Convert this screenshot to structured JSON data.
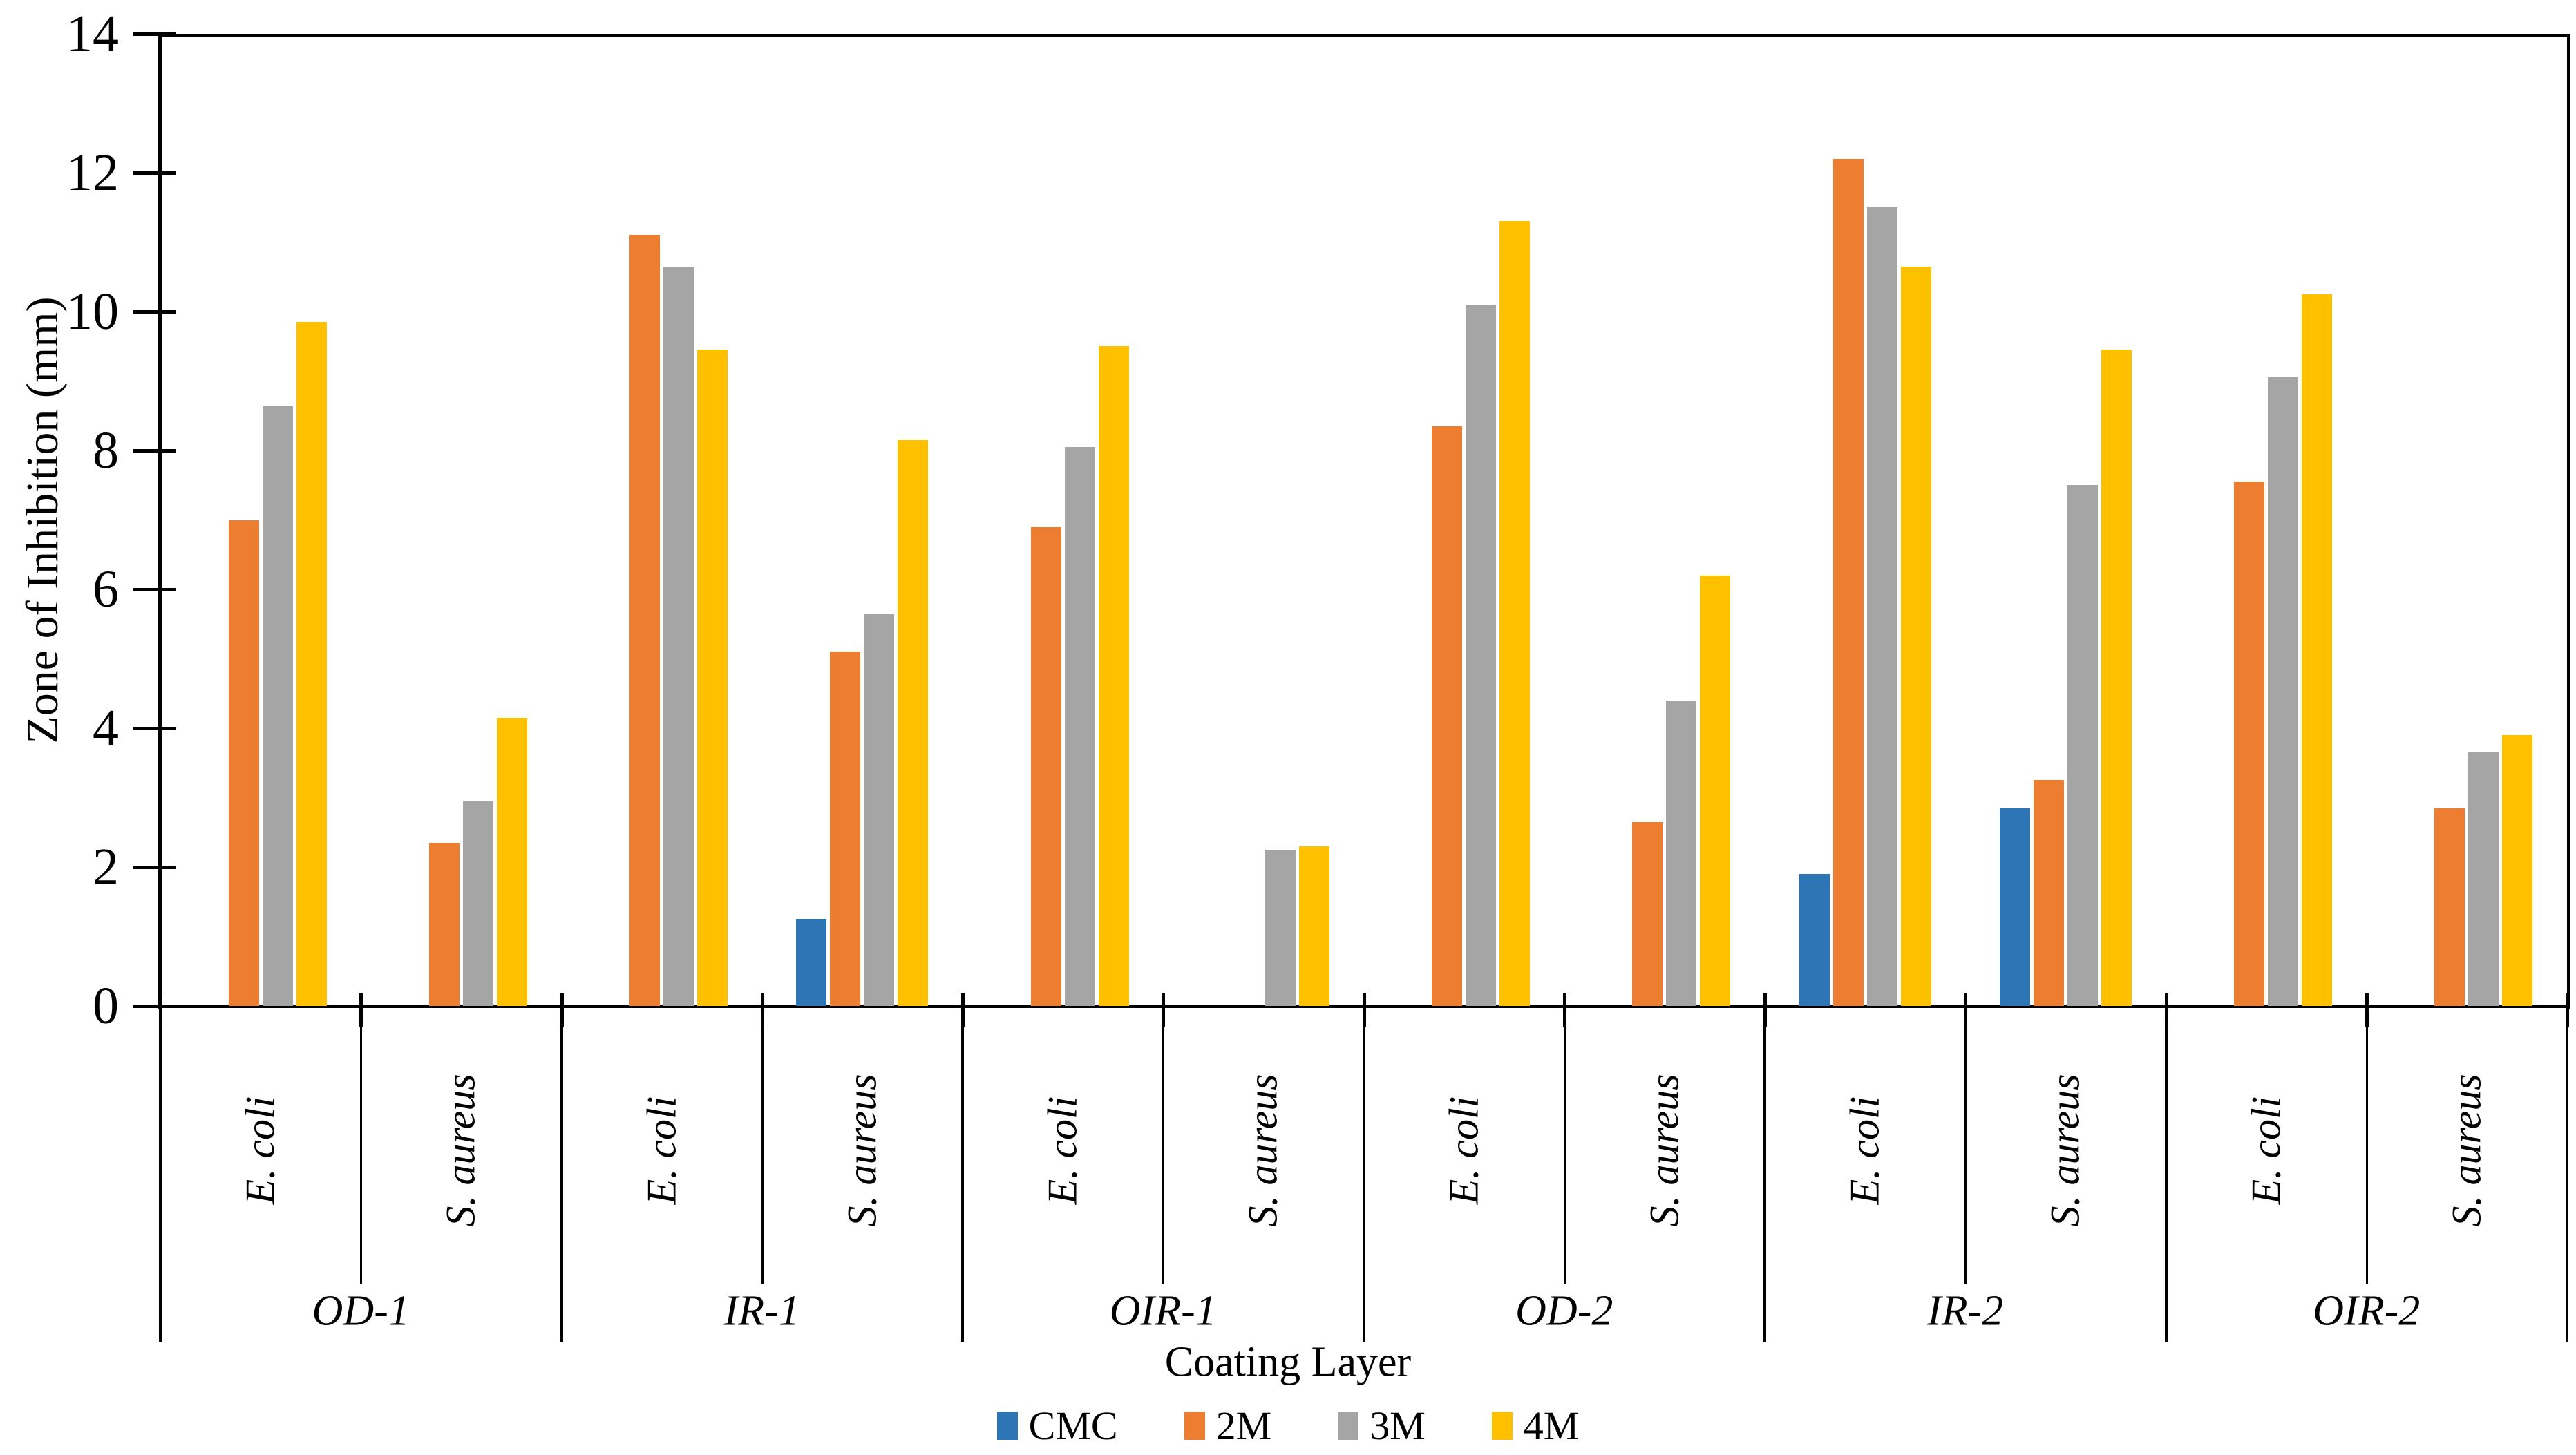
{
  "chart_data": {
    "type": "bar",
    "title": "",
    "xlabel": "Coating Layer",
    "ylabel": "Zone of Inhibition (mm)",
    "ylim": [
      0,
      14
    ],
    "yticks": [
      0,
      2,
      4,
      6,
      8,
      10,
      12,
      14
    ],
    "grid": false,
    "legend_position": "bottom",
    "groups": [
      "OD-1",
      "IR-1",
      "OIR-1",
      "OD-2",
      "IR-2",
      "OIR-2"
    ],
    "subcategories": [
      "E. coli",
      "S. aureus"
    ],
    "series": [
      {
        "name": "CMC",
        "color": "#2E75B6",
        "values": [
          [
            0,
            0
          ],
          [
            0,
            1.25
          ],
          [
            0,
            0
          ],
          [
            0,
            0
          ],
          [
            1.9,
            2.85
          ],
          [
            0,
            0
          ]
        ]
      },
      {
        "name": "2M",
        "color": "#ED7D31",
        "values": [
          [
            7.0,
            2.35
          ],
          [
            11.1,
            5.1
          ],
          [
            6.9,
            0
          ],
          [
            8.35,
            2.65
          ],
          [
            12.2,
            3.25
          ],
          [
            7.55,
            2.85
          ]
        ]
      },
      {
        "name": "3M",
        "color": "#A5A5A5",
        "values": [
          [
            8.65,
            2.95
          ],
          [
            10.65,
            5.65
          ],
          [
            8.05,
            2.25
          ],
          [
            10.1,
            4.4
          ],
          [
            11.5,
            7.5
          ],
          [
            9.05,
            3.65
          ]
        ]
      },
      {
        "name": "4M",
        "color": "#FFC000",
        "values": [
          [
            9.85,
            4.15
          ],
          [
            9.45,
            8.15
          ],
          [
            9.5,
            2.3
          ],
          [
            11.3,
            6.2
          ],
          [
            10.65,
            9.45
          ],
          [
            10.25,
            3.9
          ]
        ]
      }
    ]
  }
}
